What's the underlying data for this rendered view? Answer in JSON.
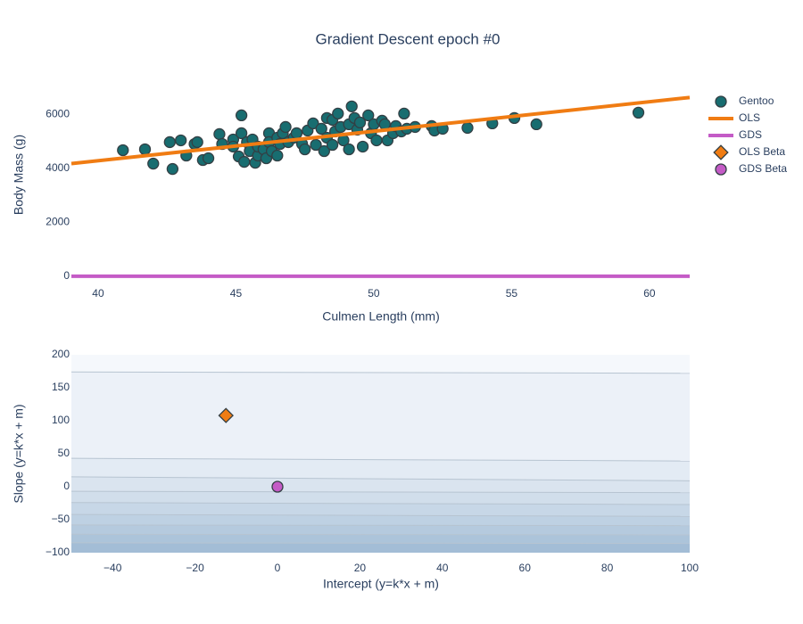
{
  "title": "Gradient Descent epoch #0",
  "chart_data": [
    {
      "type": "scatter",
      "x_label": "Culmen Length (mm)",
      "y_label": "Body Mass (g)",
      "xlim": [
        39.03,
        61.46
      ],
      "ylim": [
        -70,
        7600
      ],
      "xticks": [
        40,
        45,
        50,
        55,
        60
      ],
      "yticks": [
        0,
        2000,
        4000,
        6000
      ],
      "grid": false,
      "series": [
        {
          "name": "Gentoo",
          "mode": "markers",
          "marker": "circle",
          "color": "#186d70",
          "x": [
            40.9,
            41.7,
            42.0,
            42.6,
            42.7,
            43.0,
            43.2,
            43.5,
            43.6,
            43.8,
            44.0,
            44.4,
            44.5,
            44.9,
            44.9,
            45.1,
            45.2,
            45.2,
            45.3,
            45.4,
            45.5,
            45.6,
            45.7,
            45.8,
            45.8,
            46.0,
            46.1,
            46.2,
            46.2,
            46.3,
            46.5,
            46.5,
            46.6,
            46.7,
            46.8,
            46.9,
            47.1,
            47.2,
            47.4,
            47.5,
            47.6,
            47.8,
            47.9,
            48.1,
            48.2,
            48.3,
            48.3,
            48.5,
            48.5,
            48.6,
            48.7,
            48.8,
            48.9,
            49.1,
            49.1,
            49.2,
            49.3,
            49.4,
            49.5,
            49.6,
            49.8,
            49.9,
            50.0,
            50.1,
            50.3,
            50.4,
            50.5,
            50.7,
            50.8,
            51.0,
            51.1,
            51.2,
            51.5,
            52.1,
            52.2,
            52.5,
            53.4,
            54.3,
            55.1,
            55.9,
            59.6
          ],
          "values": [
            4674,
            4707,
            4177,
            4973,
            3978,
            5039,
            4475,
            4906,
            4973,
            4310,
            4376,
            5271,
            4906,
            5072,
            4807,
            4442,
            5967,
            5304,
            4243,
            4973,
            4641,
            5072,
            4210,
            4475,
            4807,
            4707,
            4376,
            5304,
            4973,
            4641,
            5138,
            4475,
            4906,
            5304,
            5536,
            4973,
            5138,
            5304,
            4906,
            4707,
            5403,
            5669,
            4873,
            5470,
            4641,
            5138,
            5868,
            4873,
            5801,
            5370,
            6033,
            5536,
            5039,
            4707,
            5636,
            6299,
            5868,
            5437,
            5702,
            4807,
            5967,
            5304,
            5636,
            5039,
            5768,
            5636,
            5039,
            5304,
            5569,
            5370,
            6033,
            5470,
            5536,
            5569,
            5403,
            5470,
            5503,
            5669,
            5868,
            5636,
            6067
          ]
        },
        {
          "name": "OLS",
          "mode": "lines",
          "color": "#f07c13",
          "x": [
            39.03,
            61.46
          ],
          "values": [
            4177,
            6630
          ]
        },
        {
          "name": "GDS",
          "mode": "lines",
          "color": "#c45bc6",
          "x": [
            39.03,
            61.46
          ],
          "values": [
            0,
            0
          ]
        }
      ]
    },
    {
      "type": "contour",
      "x_label": "Intercept (y=k*x + m)",
      "y_label": "Slope (y=k*x + m)",
      "xlim": [
        -50,
        100
      ],
      "ylim": [
        -100,
        200
      ],
      "xticks": [
        {
          "value": -40,
          "label": "−40"
        },
        {
          "value": -20,
          "label": "−20"
        },
        0,
        20,
        40,
        60,
        80,
        100
      ],
      "yticks": [
        {
          "value": -100,
          "label": "−100"
        },
        {
          "value": -50,
          "label": "−50"
        },
        0,
        50,
        100,
        150,
        200
      ],
      "colorscale": [
        "#f5f8fc",
        "#a3bdd6"
      ],
      "contours": [
        {
          "x": [
            -50,
            100
          ],
          "y": [
            174,
            172
          ]
        },
        {
          "x": [
            -50,
            100
          ],
          "y": [
            43,
            39
          ]
        },
        {
          "x": [
            -50,
            100
          ],
          "y": [
            15,
            9
          ]
        },
        {
          "x": [
            -50,
            100
          ],
          "y": [
            -7,
            -9
          ]
        },
        {
          "x": [
            -50,
            100
          ],
          "y": [
            -24,
            -27
          ]
        },
        {
          "x": [
            -50,
            100
          ],
          "y": [
            -42,
            -45
          ]
        },
        {
          "x": [
            -50,
            100
          ],
          "y": [
            -58,
            -59
          ]
        },
        {
          "x": [
            -50,
            100
          ],
          "y": [
            -72,
            -73
          ]
        },
        {
          "x": [
            -50,
            100
          ],
          "y": [
            -85,
            -86
          ]
        }
      ],
      "series": [
        {
          "name": "OLS Beta",
          "mode": "markers",
          "marker": "diamond",
          "color": "#f07c13",
          "x": [
            -12.5
          ],
          "values": [
            108
          ]
        },
        {
          "name": "GDS Beta",
          "mode": "markers",
          "marker": "circle",
          "color": "#c45bc6",
          "x": [
            0
          ],
          "values": [
            0
          ]
        }
      ]
    }
  ]
}
